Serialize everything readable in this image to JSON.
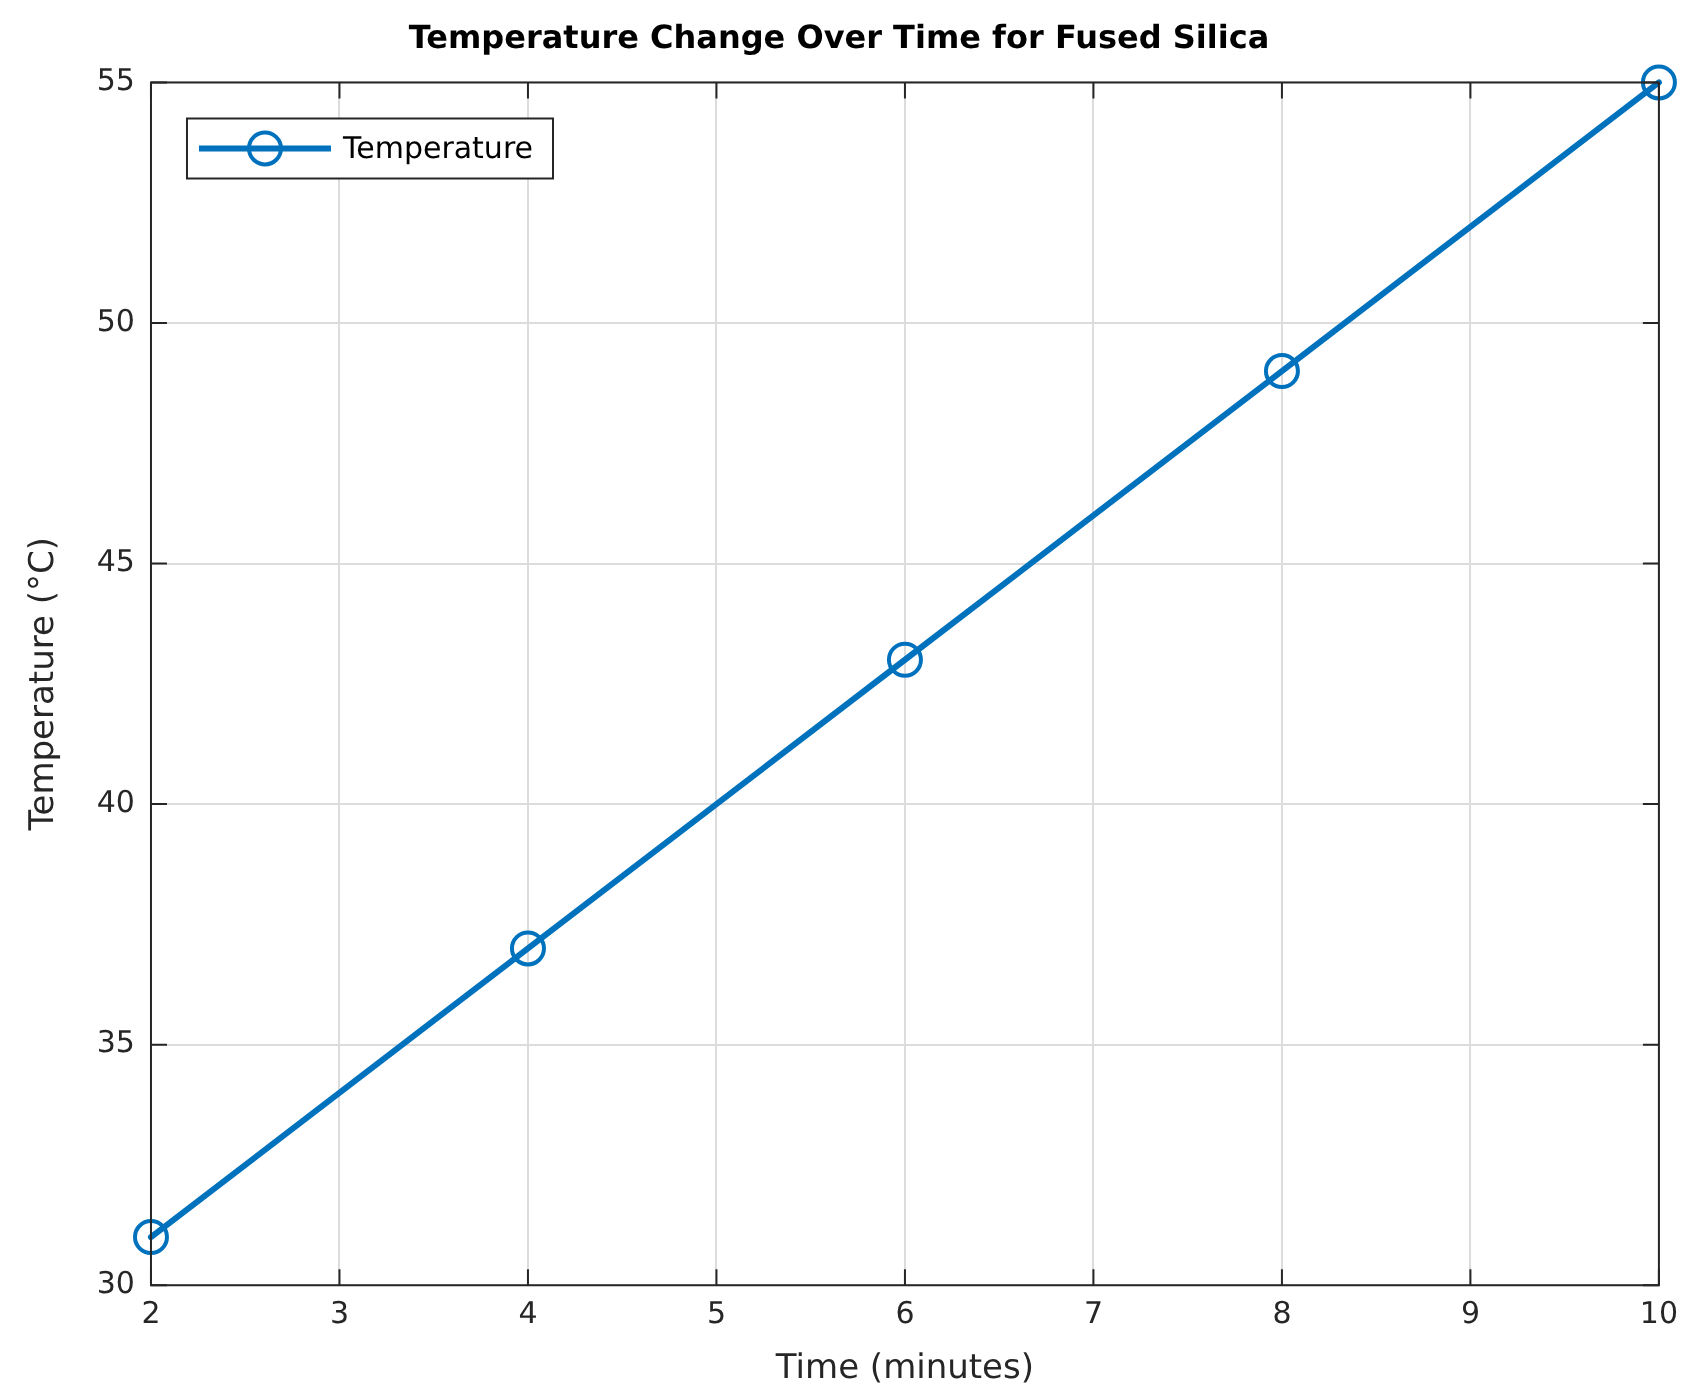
{
  "chart_data": {
    "type": "line",
    "title": "Temperature Change Over Time for Fused Silica",
    "xlabel": "Time (minutes)",
    "ylabel": "Temperature (°C)",
    "x": [
      2,
      4,
      6,
      8,
      10
    ],
    "series": [
      {
        "name": "Temperature",
        "color": "#0072bd",
        "values": [
          31,
          37,
          43,
          49,
          55
        ]
      }
    ],
    "xlim": [
      2,
      10
    ],
    "ylim": [
      30,
      55
    ],
    "xticks": [
      2,
      3,
      4,
      5,
      6,
      7,
      8,
      9,
      10
    ],
    "yticks": [
      30,
      35,
      40,
      45,
      50,
      55
    ],
    "grid": true,
    "legend": "top left",
    "marker": "circle",
    "line_style": "solid"
  }
}
